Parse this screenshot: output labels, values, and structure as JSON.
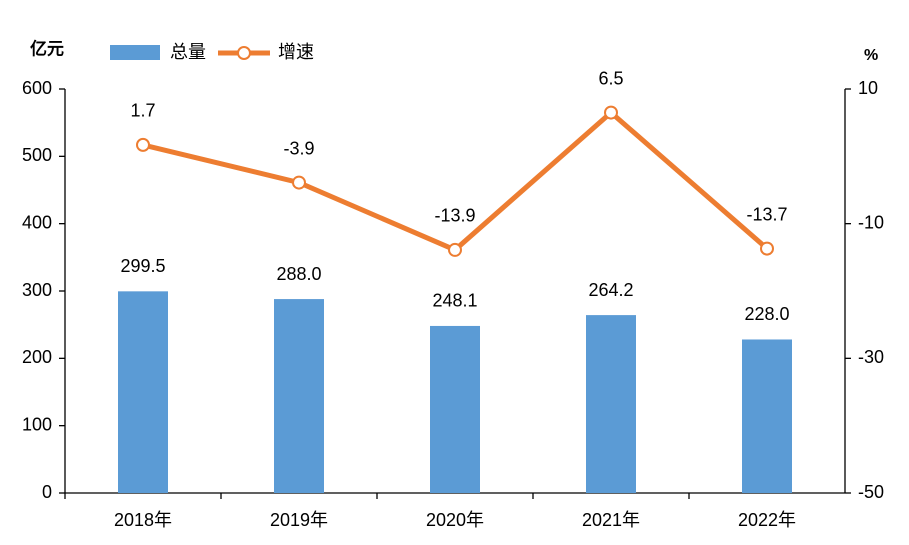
{
  "chart_data": {
    "type": "bar",
    "ylabel": "亿元",
    "y2label": "%",
    "categories": [
      "2018年",
      "2019年",
      "2020年",
      "2021年",
      "2022年"
    ],
    "series": [
      {
        "name": "总量",
        "type": "bar",
        "color": "#5b9bd5",
        "values": [
          299.5,
          288.0,
          248.1,
          264.2,
          228.0
        ],
        "value_labels": [
          "299.5",
          "288.0",
          "248.1",
          "264.2",
          "228.0"
        ]
      },
      {
        "name": "增速",
        "type": "line",
        "axis": "y2",
        "color": "#ed7d31",
        "values": [
          1.7,
          -3.9,
          -13.9,
          6.5,
          -13.7
        ]
      }
    ],
    "ylim": [
      0,
      600
    ],
    "yticks": [
      0,
      100,
      200,
      300,
      400,
      500,
      600
    ],
    "y2lim": [
      -50,
      10
    ],
    "y2ticks": [
      10,
      -10,
      -30,
      -50
    ],
    "grid": false
  }
}
